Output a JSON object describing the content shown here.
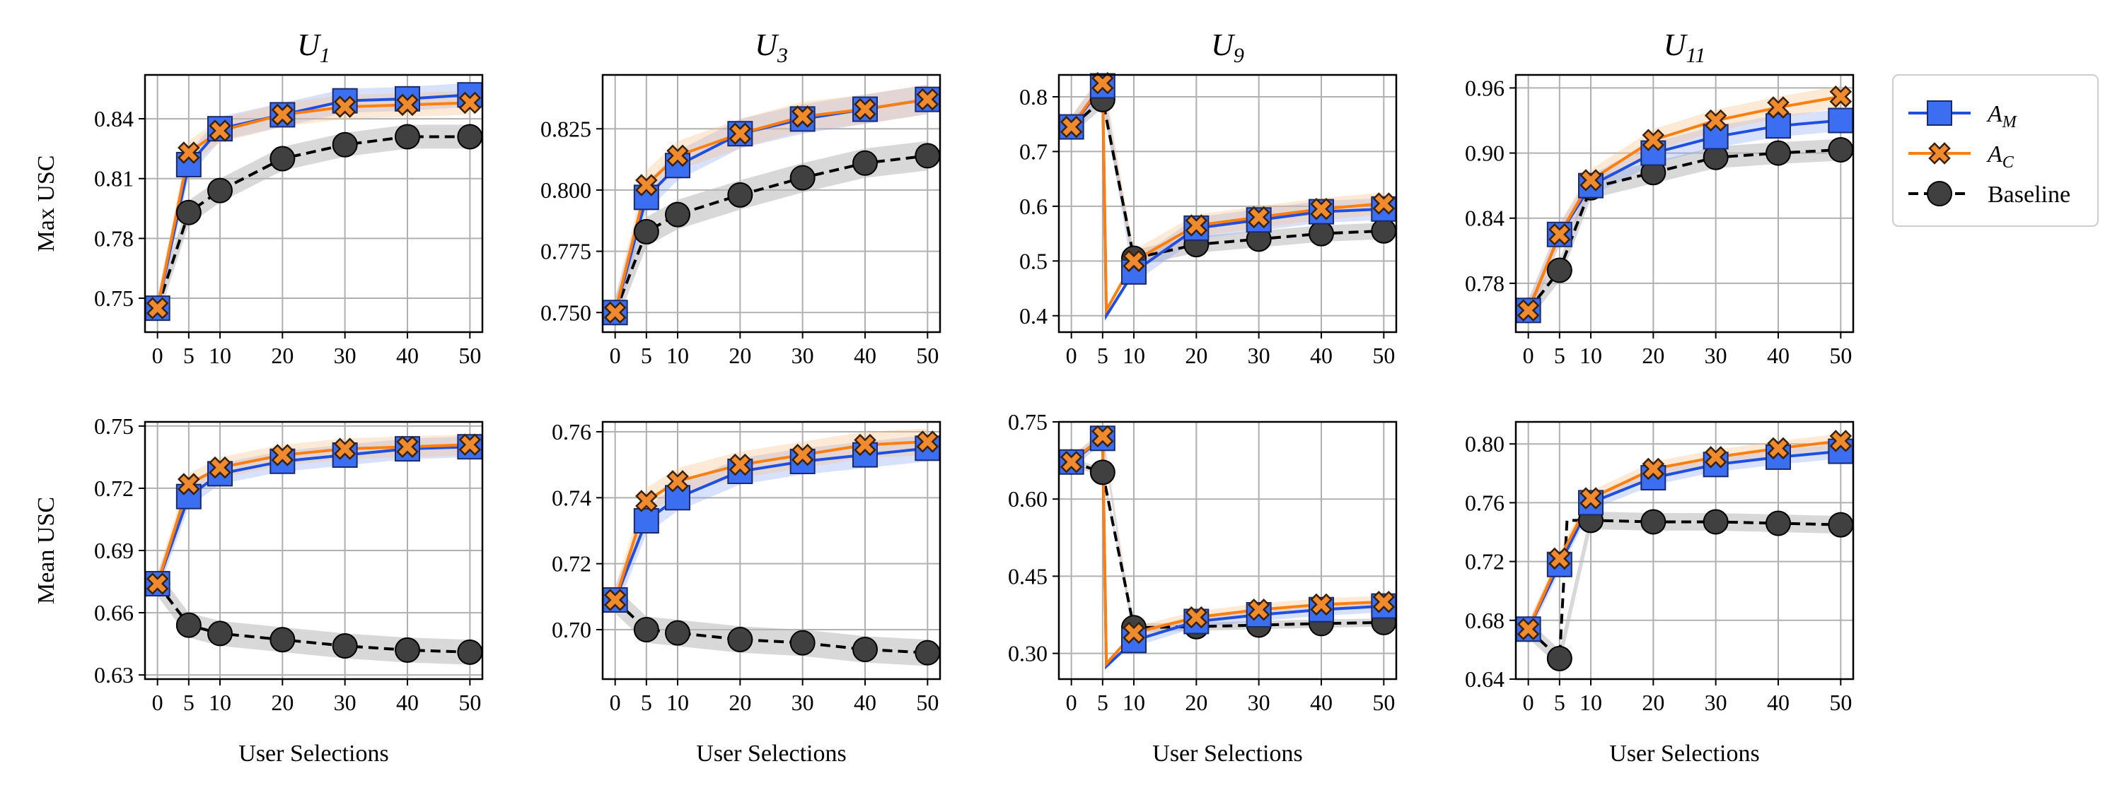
{
  "chart_data": {
    "type": "line",
    "layout": "2x4 grid of subplots",
    "x_label": "User Selections",
    "x_ticks": [
      0,
      5,
      10,
      20,
      30,
      40,
      50
    ],
    "x_range": [
      -2,
      52
    ],
    "row_labels": [
      "Max USC",
      "Mean USC"
    ],
    "columns": [
      {
        "title_main": "U",
        "title_sub": "1"
      },
      {
        "title_main": "U",
        "title_sub": "3"
      },
      {
        "title_main": "U",
        "title_sub": "9"
      },
      {
        "title_main": "U",
        "title_sub": "11"
      }
    ],
    "legend": {
      "placement": "right",
      "entries": [
        {
          "key": "am",
          "label_main": "A",
          "label_sub": "M",
          "color": "#1f4fe0",
          "fill": "#3b6ef0",
          "marker": "square",
          "dashed": false
        },
        {
          "key": "ac",
          "label_main": "A",
          "label_sub": "C",
          "color": "#ff7f0e",
          "fill": "#f08a2e",
          "marker": "x",
          "dashed": false
        },
        {
          "key": "baseline",
          "label_main": "Baseline",
          "label_sub": "",
          "color": "#000000",
          "fill": "#404040",
          "marker": "circle",
          "dashed": true
        }
      ]
    },
    "panels": [
      {
        "row": 0,
        "col": 0,
        "ylim": [
          0.733,
          0.862
        ],
        "yticks": [
          0.75,
          0.78,
          0.81,
          0.84
        ],
        "ytick_labels": [
          "0.75",
          "0.78",
          "0.81",
          "0.84"
        ],
        "x": [
          0,
          5,
          10,
          20,
          30,
          40,
          50
        ],
        "series": [
          {
            "key": "am",
            "values": [
              0.745,
              0.817,
              0.835,
              0.842,
              0.849,
              0.85,
              0.852
            ],
            "band": 0.006
          },
          {
            "key": "ac",
            "values": [
              0.745,
              0.823,
              0.834,
              0.842,
              0.846,
              0.847,
              0.848
            ],
            "band": 0.006
          },
          {
            "key": "baseline",
            "values": [
              0.745,
              0.793,
              0.804,
              0.82,
              0.827,
              0.831,
              0.831
            ],
            "band": 0.006
          }
        ]
      },
      {
        "row": 0,
        "col": 1,
        "ylim": [
          0.742,
          0.847
        ],
        "yticks": [
          0.75,
          0.775,
          0.8,
          0.825
        ],
        "ytick_labels": [
          "0.750",
          "0.775",
          "0.800",
          "0.825"
        ],
        "x": [
          0,
          5,
          10,
          20,
          30,
          40,
          50
        ],
        "series": [
          {
            "key": "am",
            "values": [
              0.75,
              0.797,
              0.81,
              0.823,
              0.829,
              0.833,
              0.837
            ],
            "band": 0.006
          },
          {
            "key": "ac",
            "values": [
              0.75,
              0.802,
              0.814,
              0.823,
              0.83,
              0.833,
              0.837
            ],
            "band": 0.006
          },
          {
            "key": "baseline",
            "values": [
              0.75,
              0.783,
              0.79,
              0.798,
              0.805,
              0.811,
              0.814
            ],
            "band": 0.006
          }
        ]
      },
      {
        "row": 0,
        "col": 2,
        "ylim": [
          0.37,
          0.84
        ],
        "yticks": [
          0.4,
          0.5,
          0.6,
          0.7,
          0.8
        ],
        "ytick_labels": [
          "0.4",
          "0.5",
          "0.6",
          "0.7",
          "0.8"
        ],
        "x": [
          0,
          5,
          10,
          20,
          30,
          40,
          50
        ],
        "series": [
          {
            "key": "am",
            "values": [
              0.745,
              0.82,
              0.48,
              0.56,
              0.575,
              0.59,
              0.595
            ],
            "band": 0.02,
            "dip": 0.4
          },
          {
            "key": "ac",
            "values": [
              0.745,
              0.825,
              0.5,
              0.565,
              0.58,
              0.595,
              0.605
            ],
            "band": 0.02,
            "dip": 0.41
          },
          {
            "key": "baseline",
            "values": [
              0.745,
              0.795,
              0.505,
              0.53,
              0.54,
              0.55,
              0.555
            ],
            "band": 0.015
          }
        ]
      },
      {
        "row": 0,
        "col": 3,
        "ylim": [
          0.735,
          0.972
        ],
        "yticks": [
          0.78,
          0.84,
          0.9,
          0.96
        ],
        "ytick_labels": [
          "0.78",
          "0.84",
          "0.90",
          "0.96"
        ],
        "x": [
          0,
          5,
          10,
          20,
          30,
          40,
          50
        ],
        "series": [
          {
            "key": "am",
            "values": [
              0.755,
              0.825,
              0.87,
              0.9,
              0.915,
              0.925,
              0.93
            ],
            "band": 0.01
          },
          {
            "key": "ac",
            "values": [
              0.755,
              0.825,
              0.875,
              0.912,
              0.93,
              0.942,
              0.952
            ],
            "band": 0.01
          },
          {
            "key": "baseline",
            "values": [
              0.755,
              0.792,
              0.868,
              0.882,
              0.896,
              0.9,
              0.903
            ],
            "band": 0.01
          }
        ]
      },
      {
        "row": 1,
        "col": 0,
        "ylim": [
          0.628,
          0.752
        ],
        "yticks": [
          0.63,
          0.66,
          0.69,
          0.72,
          0.75
        ],
        "ytick_labels": [
          "0.63",
          "0.66",
          "0.69",
          "0.72",
          "0.75"
        ],
        "x": [
          0,
          5,
          10,
          20,
          30,
          40,
          50
        ],
        "series": [
          {
            "key": "am",
            "values": [
              0.674,
              0.716,
              0.727,
              0.733,
              0.736,
              0.739,
              0.74
            ],
            "band": 0.005
          },
          {
            "key": "ac",
            "values": [
              0.674,
              0.722,
              0.73,
              0.736,
              0.739,
              0.74,
              0.741
            ],
            "band": 0.005
          },
          {
            "key": "baseline",
            "values": [
              0.674,
              0.654,
              0.65,
              0.647,
              0.644,
              0.642,
              0.641
            ],
            "band": 0.006
          }
        ]
      },
      {
        "row": 1,
        "col": 1,
        "ylim": [
          0.685,
          0.763
        ],
        "yticks": [
          0.7,
          0.72,
          0.74,
          0.76
        ],
        "ytick_labels": [
          "0.70",
          "0.72",
          "0.74",
          "0.76"
        ],
        "x": [
          0,
          5,
          10,
          20,
          30,
          40,
          50
        ],
        "series": [
          {
            "key": "am",
            "values": [
              0.709,
              0.733,
              0.74,
              0.748,
              0.751,
              0.753,
              0.755
            ],
            "band": 0.004
          },
          {
            "key": "ac",
            "values": [
              0.709,
              0.739,
              0.745,
              0.75,
              0.753,
              0.756,
              0.757
            ],
            "band": 0.004
          },
          {
            "key": "baseline",
            "values": [
              0.709,
              0.7,
              0.699,
              0.697,
              0.696,
              0.694,
              0.693
            ],
            "band": 0.004
          }
        ]
      },
      {
        "row": 1,
        "col": 2,
        "ylim": [
          0.25,
          0.75
        ],
        "yticks": [
          0.3,
          0.45,
          0.6,
          0.75
        ],
        "ytick_labels": [
          "0.30",
          "0.45",
          "0.60",
          "0.75"
        ],
        "x": [
          0,
          5,
          10,
          20,
          30,
          40,
          50
        ],
        "series": [
          {
            "key": "am",
            "values": [
              0.672,
              0.718,
              0.325,
              0.362,
              0.375,
              0.385,
              0.392
            ],
            "band": 0.012,
            "dip": 0.275
          },
          {
            "key": "ac",
            "values": [
              0.672,
              0.722,
              0.34,
              0.37,
              0.385,
              0.395,
              0.4
            ],
            "band": 0.012,
            "dip": 0.28
          },
          {
            "key": "baseline",
            "values": [
              0.672,
              0.652,
              0.35,
              0.352,
              0.355,
              0.358,
              0.36
            ],
            "band": 0.008
          }
        ]
      },
      {
        "row": 1,
        "col": 3,
        "ylim": [
          0.64,
          0.815
        ],
        "yticks": [
          0.64,
          0.68,
          0.72,
          0.76,
          0.8
        ],
        "ytick_labels": [
          "0.64",
          "0.68",
          "0.72",
          "0.76",
          "0.80"
        ],
        "x": [
          0,
          5,
          10,
          20,
          30,
          40,
          50
        ],
        "series": [
          {
            "key": "am",
            "values": [
              0.674,
              0.718,
              0.76,
              0.777,
              0.786,
              0.791,
              0.795
            ],
            "band": 0.005
          },
          {
            "key": "ac",
            "values": [
              0.674,
              0.722,
              0.763,
              0.783,
              0.791,
              0.797,
              0.802
            ],
            "band": 0.005
          },
          {
            "key": "baseline",
            "values": [
              0.674,
              0.654,
              0.748,
              0.747,
              0.747,
              0.746,
              0.745
            ],
            "band": 0.006
          }
        ]
      }
    ]
  }
}
